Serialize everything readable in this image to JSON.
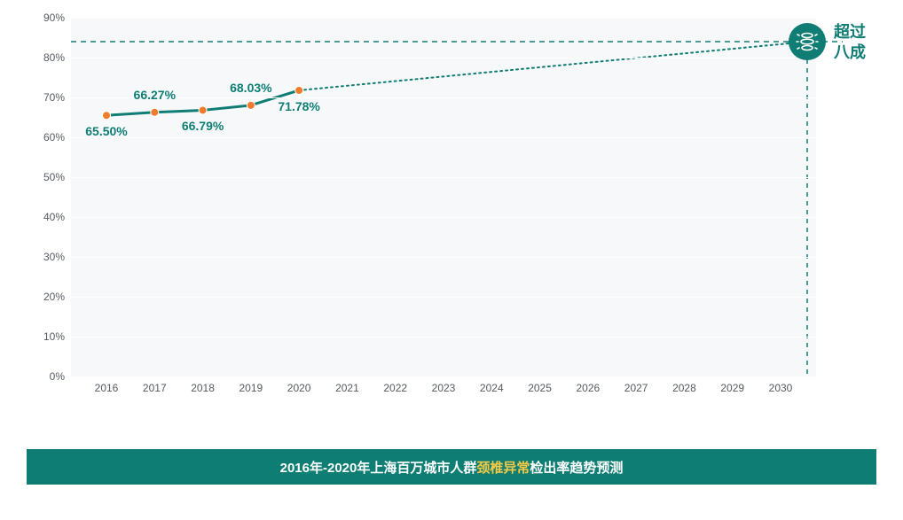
{
  "chart": {
    "type": "line",
    "background_color": "#ffffff",
    "plot_bg_color": "#f7f8f9",
    "grid_color": "#ffffff",
    "axis_label_color": "#555b61",
    "axis_fontsize": 12,
    "ylim": [
      0,
      90
    ],
    "ytick_step": 10,
    "ytick_suffix": "%",
    "x_categories": [
      "2016",
      "2017",
      "2018",
      "2019",
      "2020",
      "2021",
      "2022",
      "2023",
      "2024",
      "2025",
      "2026",
      "2027",
      "2028",
      "2029",
      "2030"
    ],
    "series_actual": {
      "x": [
        "2016",
        "2017",
        "2018",
        "2019",
        "2020"
      ],
      "y": [
        65.5,
        66.27,
        66.79,
        68.03,
        71.78
      ],
      "line_color": "#107d74",
      "line_width": 3,
      "marker_color": "#ef7b2d",
      "marker_radius": 4.5,
      "label_color": "#0e7e74",
      "label_fontsize": 14,
      "label_weight": 700,
      "labels": [
        "65.50%",
        "66.27%",
        "66.79%",
        "68.03%",
        "71.78%"
      ],
      "label_pos": [
        "below",
        "above",
        "below",
        "above",
        "below"
      ]
    },
    "projection": {
      "from_x": "2020",
      "from_y": 71.78,
      "to_x_end": "2030",
      "to_y": 84,
      "line_color": "#107d74",
      "dash": "2,4",
      "line_width": 2
    },
    "threshold": {
      "y": 84,
      "line_color": "#107d74",
      "dash": "6,5",
      "line_width": 1.5
    },
    "endcap": {
      "circle_bg": "#107d74",
      "icon_stroke": "#ffffff",
      "label_lines": [
        "超过",
        "八成"
      ],
      "label_color": "#107d74",
      "label_fontsize": 18
    }
  },
  "caption": {
    "bg_color": "#0e7e74",
    "text_color": "#ffffff",
    "prefix": "2016年-2020年上海百万城市人群",
    "highlight": "颈椎异常",
    "highlight_color": "#f6c945",
    "suffix": "检出率趋势预测",
    "fontsize": 15
  }
}
